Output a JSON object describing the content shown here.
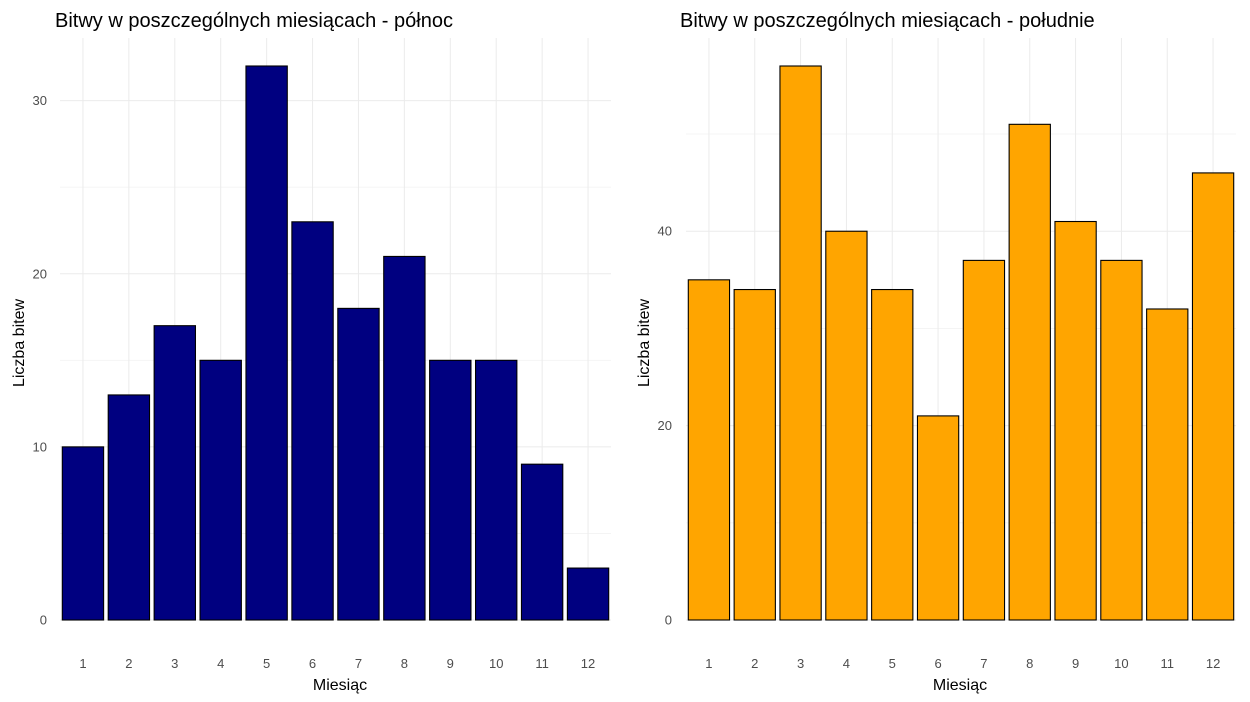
{
  "chart_data": [
    {
      "type": "bar",
      "title": "Bitwy w poszczególnych miesiącach - północ",
      "xlabel": "Miesiąc",
      "ylabel": "Liczba bitew",
      "categories": [
        "1",
        "2",
        "3",
        "4",
        "5",
        "6",
        "7",
        "8",
        "9",
        "10",
        "11",
        "12"
      ],
      "values": [
        10,
        13,
        17,
        15,
        32,
        23,
        18,
        21,
        15,
        15,
        9,
        3
      ],
      "yticks": [
        0,
        10,
        20,
        30
      ],
      "yticklabels": [
        "0",
        "10",
        "20",
        "30"
      ],
      "ylim": [
        0,
        32
      ],
      "bar_color": "#000080",
      "grid": true,
      "legend": "none"
    },
    {
      "type": "bar",
      "title": "Bitwy w poszczególnych miesiącach - południe",
      "xlabel": "Miesiąc",
      "ylabel": "Liczba bitew",
      "categories": [
        "1",
        "2",
        "3",
        "4",
        "5",
        "6",
        "7",
        "8",
        "9",
        "10",
        "11",
        "12"
      ],
      "values": [
        35,
        34,
        57,
        40,
        34,
        21,
        37,
        51,
        41,
        37,
        32,
        46
      ],
      "yticks": [
        0,
        20,
        40
      ],
      "yticklabels": [
        "0",
        "20",
        "40"
      ],
      "ylim": [
        0,
        57
      ],
      "bar_color": "#FFA500",
      "grid": true,
      "legend": "none"
    }
  ]
}
